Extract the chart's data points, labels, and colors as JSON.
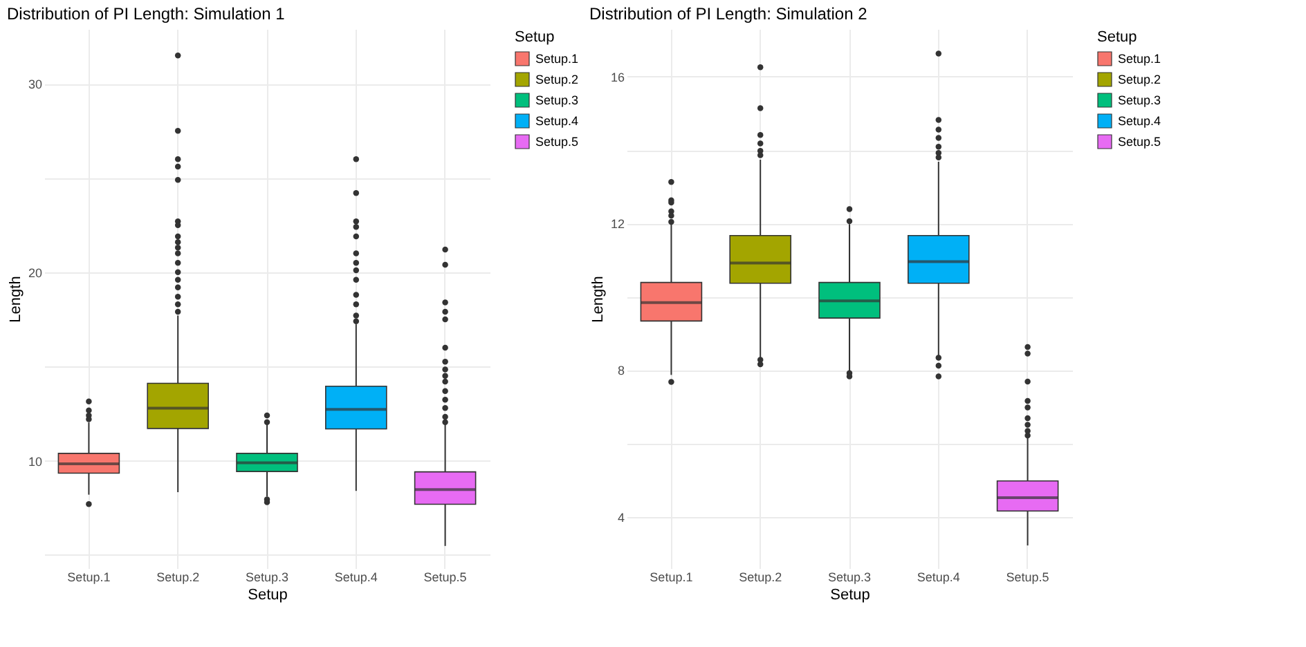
{
  "chart_data": [
    {
      "type": "box",
      "title": "Distribution of PI Length: Simulation 1",
      "xlabel": "Setup",
      "ylabel": "Length",
      "legend_title": "Setup",
      "categories": [
        "Setup.1",
        "Setup.2",
        "Setup.3",
        "Setup.4",
        "Setup.5"
      ],
      "series": [
        {
          "name": "Setup.1",
          "color": "#f8766d",
          "boxes": [
            {
              "low": 8.2,
              "q1": 9.34,
              "median": 9.84,
              "q3": 10.39,
              "high": 12.03,
              "outliers": [
                7.7,
                13.15,
                12.67,
                12.4,
                12.2
              ]
            },
            null,
            null,
            null,
            null
          ]
        },
        {
          "name": "Setup.2",
          "color": "#a3a500",
          "boxes": [
            null,
            {
              "low": 8.33,
              "q1": 11.71,
              "median": 12.79,
              "q3": 14.11,
              "high": 17.7,
              "outliers": [
                31.5,
                27.5,
                26.0,
                25.6,
                24.9,
                22.7,
                22.5,
                21.9,
                21.6,
                21.3,
                21.0,
                20.5,
                20.0,
                19.6,
                19.2,
                18.7,
                18.3,
                17.9
              ]
            },
            null,
            null,
            null
          ]
        },
        {
          "name": "Setup.3",
          "color": "#00bf7d",
          "boxes": [
            null,
            null,
            {
              "low": 8.1,
              "q1": 9.43,
              "median": 9.89,
              "q3": 10.39,
              "high": 11.99,
              "outliers": [
                12.4,
                12.05,
                7.95,
                7.8
              ]
            },
            null,
            null
          ]
        },
        {
          "name": "Setup.4",
          "color": "#00b0f6",
          "boxes": [
            null,
            null,
            null,
            {
              "low": 8.4,
              "q1": 11.69,
              "median": 12.72,
              "q3": 13.95,
              "high": 17.24,
              "outliers": [
                26.0,
                24.2,
                22.7,
                22.4,
                21.9,
                21.0,
                20.5,
                20.1,
                19.6,
                18.8,
                18.3,
                17.7,
                17.4
              ]
            },
            null
          ]
        },
        {
          "name": "Setup.5",
          "color": "#e76bf3",
          "boxes": [
            null,
            null,
            null,
            null,
            {
              "low": 5.48,
              "q1": 7.69,
              "median": 8.47,
              "q3": 9.41,
              "high": 11.99,
              "outliers": [
                21.2,
                20.4,
                18.4,
                17.9,
                17.5,
                16.0,
                15.25,
                14.84,
                14.5,
                14.2,
                13.7,
                13.24,
                12.8,
                12.33,
                12.05
              ]
            }
          ]
        }
      ],
      "ylim": [
        4.3,
        32.9
      ],
      "yticks": [
        {
          "value": 5,
          "label": null
        },
        10,
        {
          "value": 15,
          "label": null
        },
        20,
        {
          "value": 25,
          "label": null
        },
        30
      ],
      "grid": true,
      "legend": "right"
    },
    {
      "type": "box",
      "title": "Distribution of PI Length: Simulation 2",
      "xlabel": "Setup",
      "ylabel": "Length",
      "legend_title": "Setup",
      "categories": [
        "Setup.1",
        "Setup.2",
        "Setup.3",
        "Setup.4",
        "Setup.5"
      ],
      "series": [
        {
          "name": "Setup.1",
          "color": "#f8766d",
          "boxes": [
            {
              "low": 7.87,
              "q1": 9.34,
              "median": 9.84,
              "q3": 10.39,
              "high": 11.98,
              "outliers": [
                7.68,
                13.13,
                12.63,
                12.57,
                12.33,
                12.21,
                12.04
              ]
            },
            null,
            null,
            null,
            null
          ]
        },
        {
          "name": "Setup.2",
          "color": "#a3a500",
          "boxes": [
            null,
            {
              "low": 8.34,
              "q1": 10.37,
              "median": 10.92,
              "q3": 11.67,
              "high": 13.74,
              "outliers": [
                16.26,
                15.14,
                14.41,
                14.18,
                13.98,
                13.86,
                8.28,
                8.16
              ]
            },
            null,
            null,
            null
          ]
        },
        {
          "name": "Setup.3",
          "color": "#00bf7d",
          "boxes": [
            null,
            null,
            {
              "low": 7.95,
              "q1": 9.42,
              "median": 9.89,
              "q3": 10.39,
              "high": 11.98,
              "outliers": [
                12.39,
                12.06,
                7.92,
                7.83
              ]
            },
            null,
            null
          ]
        },
        {
          "name": "Setup.4",
          "color": "#00b0f6",
          "boxes": [
            null,
            null,
            null,
            {
              "low": 8.4,
              "q1": 10.37,
              "median": 10.96,
              "q3": 11.67,
              "high": 13.68,
              "outliers": [
                16.63,
                14.82,
                14.56,
                14.33,
                14.09,
                13.92,
                13.8,
                8.34,
                8.12,
                7.83
              ]
            },
            null
          ]
        },
        {
          "name": "Setup.5",
          "color": "#e76bf3",
          "boxes": [
            null,
            null,
            null,
            null,
            {
              "low": 3.22,
              "q1": 4.16,
              "median": 4.52,
              "q3": 4.98,
              "high": 6.16,
              "outliers": [
                8.63,
                8.45,
                7.69,
                7.16,
                6.98,
                6.69,
                6.51,
                6.34,
                6.22
              ]
            }
          ]
        }
      ],
      "ylim": [
        2.6,
        17.3
      ],
      "yticks": [
        4,
        {
          "value": 6,
          "label": null
        },
        8,
        {
          "value": 10,
          "label": null
        },
        12,
        {
          "value": 14,
          "label": null
        },
        16
      ],
      "grid": true,
      "legend": "right"
    }
  ]
}
